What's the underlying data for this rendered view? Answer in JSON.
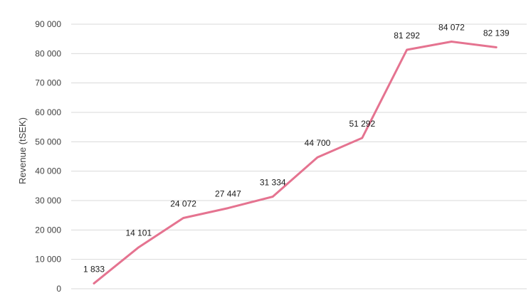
{
  "chart_data": {
    "type": "line",
    "title": "",
    "xlabel": "",
    "ylabel": "Revenue (tSEK)",
    "ylim": [
      0,
      90000
    ],
    "yticks": [
      0,
      10000,
      20000,
      30000,
      40000,
      50000,
      60000,
      70000,
      80000,
      90000
    ],
    "ytick_labels": [
      "0",
      "10 000",
      "20 000",
      "30 000",
      "40 000",
      "50 000",
      "60 000",
      "70 000",
      "80 000",
      "90 000"
    ],
    "grid": true,
    "legend": "none",
    "series": [
      {
        "color": "#e57390",
        "values": [
          1833,
          14101,
          24072,
          27447,
          31334,
          44700,
          51292,
          81292,
          84072,
          82139
        ],
        "labels": [
          "1 833",
          "14 101",
          "24 072",
          "27 447",
          "31 334",
          "44 700",
          "51 292",
          "81 292",
          "84 072",
          "82 139"
        ]
      }
    ]
  }
}
